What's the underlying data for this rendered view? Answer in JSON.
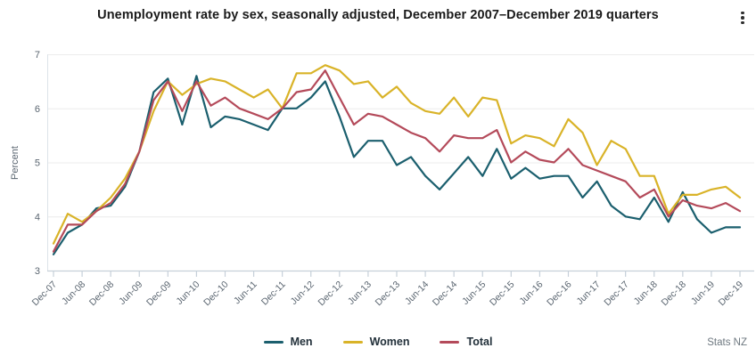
{
  "header": {
    "title": "Unemployment rate by sex, seasonally adjusted, December 2007–December 2019 quarters",
    "menu_icon": "kebab-menu"
  },
  "footer": {
    "source": "Stats NZ"
  },
  "chart_data": {
    "type": "line",
    "title": "Unemployment rate by sex, seasonally adjusted, December 2007–December 2019 quarters",
    "xlabel": "",
    "ylabel": "Percent",
    "ylim": [
      3,
      7
    ],
    "yticks": [
      3,
      4,
      5,
      6,
      7
    ],
    "grid": true,
    "legend_position": "bottom",
    "x_tick_labels": [
      "Dec-07",
      "Jun-08",
      "Dec-08",
      "Jun-09",
      "Dec-09",
      "Jun-10",
      "Dec-10",
      "Jun-11",
      "Dec-11",
      "Jun-12",
      "Dec-12",
      "Jun-13",
      "Dec-13",
      "Jun-14",
      "Dec-14",
      "Jun-15",
      "Dec-15",
      "Jun-16",
      "Dec-16",
      "Jun-17",
      "Dec-17",
      "Jun-18",
      "Dec-18",
      "Jun-19",
      "Dec-19"
    ],
    "categories": [
      "Dec-07",
      "Mar-08",
      "Jun-08",
      "Sep-08",
      "Dec-08",
      "Mar-09",
      "Jun-09",
      "Sep-09",
      "Dec-09",
      "Mar-10",
      "Jun-10",
      "Sep-10",
      "Dec-10",
      "Mar-11",
      "Jun-11",
      "Sep-11",
      "Dec-11",
      "Mar-12",
      "Jun-12",
      "Sep-12",
      "Dec-12",
      "Mar-13",
      "Jun-13",
      "Sep-13",
      "Dec-13",
      "Mar-14",
      "Jun-14",
      "Sep-14",
      "Dec-14",
      "Mar-15",
      "Jun-15",
      "Sep-15",
      "Dec-15",
      "Mar-16",
      "Jun-16",
      "Sep-16",
      "Dec-16",
      "Mar-17",
      "Jun-17",
      "Sep-17",
      "Dec-17",
      "Mar-18",
      "Jun-18",
      "Sep-18",
      "Dec-18",
      "Mar-19",
      "Jun-19",
      "Sep-19",
      "Dec-19"
    ],
    "series": [
      {
        "name": "Men",
        "color": "#1b5f6e",
        "values": [
          3.3,
          3.7,
          3.85,
          4.15,
          4.2,
          4.55,
          5.2,
          6.3,
          6.55,
          5.7,
          6.6,
          5.65,
          5.85,
          5.8,
          5.7,
          5.6,
          6.0,
          6.0,
          6.2,
          6.5,
          5.85,
          5.1,
          5.4,
          5.4,
          4.95,
          5.1,
          4.75,
          4.5,
          4.8,
          5.1,
          4.75,
          5.25,
          4.7,
          4.9,
          4.7,
          4.75,
          4.75,
          4.35,
          4.65,
          4.2,
          4.0,
          3.95,
          4.35,
          3.9,
          4.45,
          3.95,
          3.7,
          3.8,
          3.8
        ]
      },
      {
        "name": "Women",
        "color": "#d9b328",
        "values": [
          3.5,
          4.05,
          3.9,
          4.1,
          4.35,
          4.7,
          5.2,
          5.95,
          6.5,
          6.25,
          6.45,
          6.55,
          6.5,
          6.35,
          6.2,
          6.35,
          6.0,
          6.65,
          6.65,
          6.8,
          6.7,
          6.45,
          6.5,
          6.2,
          6.4,
          6.1,
          5.95,
          5.9,
          6.2,
          5.85,
          6.2,
          6.15,
          5.35,
          5.5,
          5.45,
          5.3,
          5.8,
          5.55,
          4.95,
          5.4,
          5.25,
          4.75,
          4.75,
          4.05,
          4.4,
          4.4,
          4.5,
          4.55,
          4.35
        ]
      },
      {
        "name": "Total",
        "color": "#b44a5a",
        "values": [
          3.35,
          3.85,
          3.85,
          4.1,
          4.25,
          4.6,
          5.2,
          6.15,
          6.5,
          5.95,
          6.5,
          6.05,
          6.2,
          6.0,
          5.9,
          5.8,
          6.0,
          6.3,
          6.35,
          6.7,
          6.2,
          5.7,
          5.9,
          5.85,
          5.7,
          5.55,
          5.45,
          5.2,
          5.5,
          5.45,
          5.45,
          5.6,
          5.0,
          5.2,
          5.05,
          5.0,
          5.25,
          4.95,
          4.85,
          4.75,
          4.65,
          4.35,
          4.5,
          4.0,
          4.3,
          4.2,
          4.15,
          4.25,
          4.1
        ]
      }
    ],
    "colors": {
      "grid": "#ececec",
      "axis": "#c6d0d9",
      "tick_text": "#5a6570",
      "title_text": "#1a1a1a"
    }
  }
}
